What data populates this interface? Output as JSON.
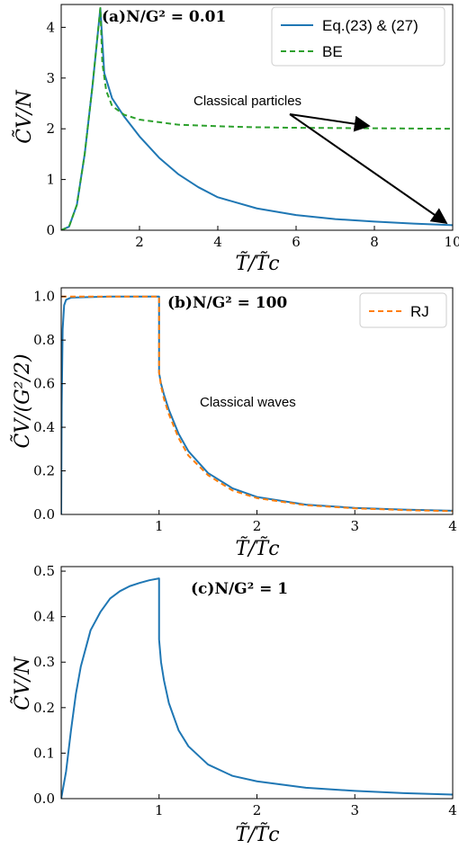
{
  "chart_data": [
    {
      "type": "line",
      "panel_label": "(a)N/G² = 0.01",
      "xlabel": "T̃/T̃c",
      "ylabel": "C̃V/N",
      "xlim": [
        0,
        10
      ],
      "ylim": [
        0,
        4.45
      ],
      "xticks": [
        2,
        4,
        6,
        8,
        10
      ],
      "yticks": [
        0,
        1,
        2,
        3,
        4
      ],
      "legend_position": "top-right",
      "annotation": "Classical particles",
      "colors": {
        "blue": "#1f77b4",
        "green": "#2ca02c"
      },
      "series": [
        {
          "name": "Eq.(23) & (27)",
          "style": "solid",
          "color": "#1f77b4",
          "x": [
            0,
            0.2,
            0.4,
            0.6,
            0.8,
            1.0,
            1.1,
            1.3,
            1.6,
            2,
            2.5,
            3,
            3.5,
            4,
            5,
            6,
            7,
            8,
            9,
            10
          ],
          "y": [
            0,
            0.07,
            0.5,
            1.5,
            2.85,
            4.38,
            3.1,
            2.6,
            2.25,
            1.85,
            1.43,
            1.1,
            0.85,
            0.65,
            0.43,
            0.3,
            0.22,
            0.17,
            0.13,
            0.1
          ]
        },
        {
          "name": "BE",
          "style": "dashed",
          "color": "#2ca02c",
          "x": [
            0,
            0.2,
            0.4,
            0.6,
            0.8,
            1.0,
            1.05,
            1.15,
            1.3,
            1.6,
            2,
            3,
            4,
            5,
            6,
            8,
            10
          ],
          "y": [
            0,
            0.07,
            0.5,
            1.5,
            2.85,
            4.38,
            3.3,
            2.75,
            2.45,
            2.28,
            2.18,
            2.08,
            2.05,
            2.03,
            2.02,
            2.01,
            2.0
          ]
        }
      ]
    },
    {
      "type": "line",
      "panel_label": "(b)N/G² = 100",
      "xlabel": "T̃/T̃c",
      "ylabel": "C̃V/(G²/2)",
      "xlim": [
        0,
        4
      ],
      "ylim": [
        0,
        1.04
      ],
      "xticks": [
        1,
        2,
        3,
        4
      ],
      "yticks": [
        0.0,
        0.2,
        0.4,
        0.6,
        0.8,
        1.0
      ],
      "legend_position": "top-right",
      "annotation": "Classical waves",
      "colors": {
        "blue": "#1f77b4",
        "orange": "#ff7f0e"
      },
      "series": [
        {
          "name": "",
          "style": "solid",
          "color": "#1f77b4",
          "x": [
            0,
            0.005,
            0.015,
            0.03,
            0.05,
            0.1,
            0.5,
            1.0,
            1.0,
            1.02,
            1.05,
            1.1,
            1.2,
            1.3,
            1.5,
            1.75,
            2,
            2.5,
            3,
            3.5,
            4
          ],
          "y": [
            0,
            0.5,
            0.85,
            0.96,
            0.985,
            0.995,
            1.0,
            1.0,
            0.65,
            0.6,
            0.55,
            0.48,
            0.37,
            0.29,
            0.19,
            0.12,
            0.08,
            0.045,
            0.03,
            0.022,
            0.017
          ]
        },
        {
          "name": "RJ",
          "style": "dashed",
          "color": "#ff7f0e",
          "x": [
            0,
            0.003,
            0.5,
            1.0,
            1.0,
            1.02,
            1.05,
            1.1,
            1.2,
            1.3,
            1.5,
            1.75,
            2,
            2.5,
            3,
            3.5,
            4
          ],
          "y": [
            1.0,
            1.0,
            1.0,
            1.0,
            0.65,
            0.59,
            0.53,
            0.46,
            0.35,
            0.27,
            0.18,
            0.11,
            0.075,
            0.042,
            0.028,
            0.02,
            0.015
          ]
        }
      ]
    },
    {
      "type": "line",
      "panel_label": "(c)N/G² = 1",
      "xlabel": "T̃/T̃c",
      "ylabel": "C̃V/N",
      "xlim": [
        0,
        4
      ],
      "ylim": [
        0,
        0.51
      ],
      "xticks": [
        1,
        2,
        3,
        4
      ],
      "yticks": [
        0.0,
        0.1,
        0.2,
        0.3,
        0.4,
        0.5
      ],
      "colors": {
        "blue": "#1f77b4"
      },
      "series": [
        {
          "name": "",
          "style": "solid",
          "color": "#1f77b4",
          "x": [
            0,
            0.05,
            0.1,
            0.15,
            0.2,
            0.25,
            0.3,
            0.4,
            0.5,
            0.6,
            0.7,
            0.8,
            0.9,
            1.0,
            1.0,
            1.02,
            1.05,
            1.1,
            1.2,
            1.3,
            1.5,
            1.75,
            2,
            2.5,
            3,
            3.5,
            4
          ],
          "y": [
            0,
            0.06,
            0.15,
            0.23,
            0.29,
            0.33,
            0.37,
            0.41,
            0.44,
            0.456,
            0.467,
            0.474,
            0.48,
            0.484,
            0.35,
            0.3,
            0.26,
            0.21,
            0.15,
            0.115,
            0.075,
            0.05,
            0.038,
            0.024,
            0.017,
            0.012,
            0.009
          ]
        }
      ]
    }
  ]
}
